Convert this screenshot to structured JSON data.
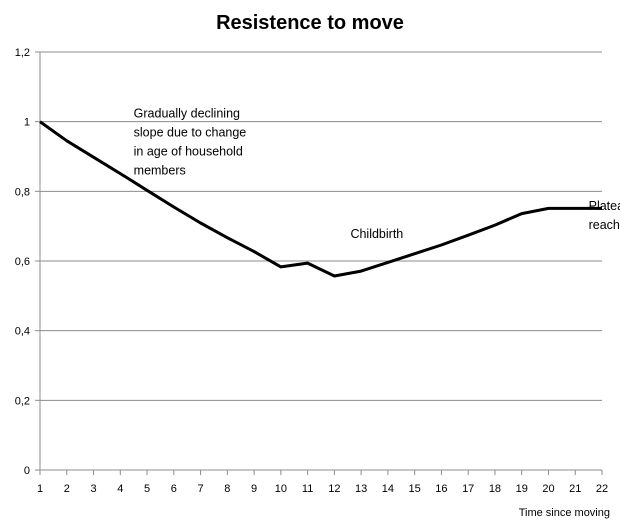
{
  "chart_data": {
    "type": "line",
    "title": "Resistence to move",
    "xlabel": "Time since moving",
    "ylabel": "",
    "x": [
      1,
      2,
      3,
      4,
      5,
      6,
      7,
      8,
      9,
      10,
      11,
      12,
      13,
      14,
      15,
      16,
      17,
      18,
      19,
      20,
      21,
      22
    ],
    "series": [
      {
        "values": [
          1.0,
          0.945,
          0.898,
          0.851,
          0.803,
          0.755,
          0.709,
          0.667,
          0.627,
          0.583,
          0.594,
          0.557,
          0.571,
          0.596,
          0.621,
          0.646,
          0.674,
          0.703,
          0.736,
          0.751,
          0.751,
          0.751
        ],
        "color": "#000000"
      }
    ],
    "ylim": [
      0,
      1.2
    ],
    "yticks": [
      "0",
      "0,2",
      "0,4",
      "0,6",
      "0,8",
      "1",
      "1,2"
    ],
    "xticks": [
      "1",
      "2",
      "3",
      "4",
      "5",
      "6",
      "7",
      "8",
      "9",
      "10",
      "11",
      "12",
      "13",
      "14",
      "15",
      "16",
      "17",
      "18",
      "19",
      "20",
      "21",
      "22"
    ],
    "grid": "horizontal",
    "annotations": [
      {
        "lines": [
          "Gradually declining",
          "slope due to change",
          "in age of household",
          "members"
        ],
        "x": 4.5,
        "y": 1.0
      },
      {
        "lines": [
          "Childbirth"
        ],
        "x": 12.6,
        "y": 0.655
      },
      {
        "lines": [
          "Plateau",
          "reached"
        ],
        "x": 21.5,
        "y": 0.735
      }
    ]
  }
}
